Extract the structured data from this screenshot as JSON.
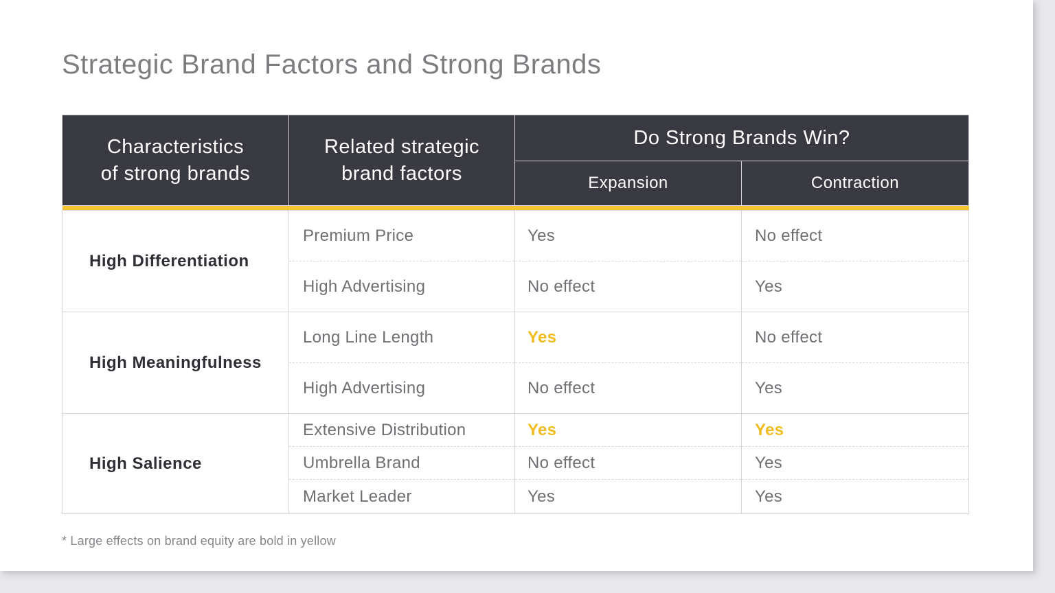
{
  "title": "Strategic Brand Factors and Strong Brands",
  "table": {
    "headers": {
      "characteristics": [
        "Characteristics",
        "of strong brands"
      ],
      "factors": [
        "Related strategic",
        "brand factors"
      ],
      "group": "Do Strong Brands Win?",
      "expansion": "Expansion",
      "contraction": "Contraction"
    },
    "groups": [
      {
        "characteristic": "High Differentiation",
        "rows": [
          {
            "factor": "Premium Price",
            "expansion": "Yes",
            "contraction": "No effect"
          },
          {
            "factor": "High Advertising",
            "expansion": "No effect",
            "contraction": "Yes"
          }
        ]
      },
      {
        "characteristic": "High Meaningfulness",
        "rows": [
          {
            "factor": "Long Line Length",
            "expansion": "Yes",
            "contraction": "No effect"
          },
          {
            "factor": "High Advertising",
            "expansion": "No effect",
            "contraction": "Yes"
          }
        ]
      },
      {
        "characteristic": "High Salience",
        "rows": [
          {
            "factor": "Extensive Distribution",
            "expansion": "Yes",
            "contraction": "Yes"
          },
          {
            "factor": "Umbrella Brand",
            "expansion": "No effect",
            "contraction": "Yes"
          },
          {
            "factor": "Market Leader",
            "expansion": "Yes",
            "contraction": "Yes"
          }
        ]
      }
    ],
    "highlighted_cells": [
      {
        "factor": "Long Line Length",
        "column": "Expansion"
      },
      {
        "factor": "Extensive Distribution",
        "column": "Expansion"
      },
      {
        "factor": "Extensive Distribution",
        "column": "Contraction"
      }
    ]
  },
  "footnote": "* Large effects on brand equity are bold in yellow",
  "colors": {
    "header_bg": "#393941",
    "accent_yellow": "#f5c532",
    "highlight_text": "#f0bc1f",
    "title_gray": "#7d7d81"
  }
}
